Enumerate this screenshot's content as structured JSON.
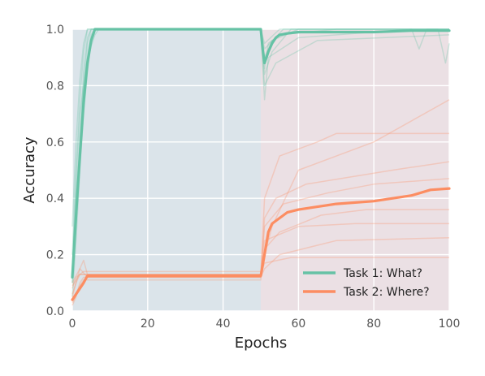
{
  "chart_data": {
    "type": "line",
    "title": "",
    "xlabel": "Epochs",
    "ylabel": "Accuracy",
    "xlim": [
      0,
      100
    ],
    "ylim": [
      0,
      1
    ],
    "xticks": [
      0,
      20,
      40,
      60,
      80,
      100
    ],
    "yticks": [
      0.0,
      0.2,
      0.4,
      0.6,
      0.8,
      1.0
    ],
    "grid": true,
    "legend_position": "bottom-right",
    "regions": [
      {
        "x_start": 0,
        "x_end": 50,
        "color": "#dbe4ea"
      },
      {
        "x_start": 50,
        "x_end": 100,
        "color": "#ebe0e4"
      }
    ],
    "series": [
      {
        "name": "Task 1: What?",
        "color": "#66c2a5",
        "x": [
          0,
          1,
          2,
          3,
          4,
          5,
          6,
          7,
          10,
          20,
          30,
          40,
          50,
          50.5,
          51,
          52,
          53,
          54,
          55,
          57,
          60,
          70,
          80,
          90,
          100
        ],
        "y": [
          0.12,
          0.34,
          0.55,
          0.74,
          0.88,
          0.96,
          1.0,
          1.0,
          1.0,
          1.0,
          1.0,
          1.0,
          1.0,
          0.93,
          0.88,
          0.92,
          0.95,
          0.97,
          0.98,
          0.985,
          0.99,
          0.99,
          0.99,
          0.995,
          0.995
        ],
        "runs": [
          {
            "x": [
              0,
              1,
              2,
              3,
              4,
              5,
              6,
              50,
              51,
              53,
              60,
              100
            ],
            "y": [
              0.1,
              0.3,
              0.6,
              0.85,
              0.97,
              1.0,
              1.0,
              1.0,
              0.9,
              0.96,
              1.0,
              1.0
            ]
          },
          {
            "x": [
              0,
              1,
              2,
              3,
              4,
              5,
              6,
              7,
              50,
              51,
              52,
              55,
              70,
              100
            ],
            "y": [
              0.15,
              0.45,
              0.7,
              0.8,
              0.9,
              0.98,
              1.0,
              1.0,
              1.0,
              0.86,
              0.95,
              0.98,
              1.0,
              1.0
            ]
          },
          {
            "x": [
              0,
              1,
              2,
              3,
              4,
              5,
              50,
              51,
              54,
              65,
              100
            ],
            "y": [
              0.2,
              0.5,
              0.75,
              0.92,
              1.0,
              1.0,
              1.0,
              0.8,
              0.88,
              0.96,
              0.98
            ]
          },
          {
            "x": [
              0,
              1,
              2,
              3,
              4,
              5,
              6,
              50,
              51,
              56,
              100
            ],
            "y": [
              0.05,
              0.25,
              0.5,
              0.7,
              0.85,
              0.95,
              1.0,
              1.0,
              0.93,
              1.0,
              1.0
            ]
          },
          {
            "x": [
              0,
              1,
              2,
              3,
              4,
              5,
              6,
              7,
              50,
              51,
              53,
              58,
              100
            ],
            "y": [
              0.1,
              0.4,
              0.6,
              0.78,
              0.88,
              0.94,
              0.98,
              1.0,
              1.0,
              0.84,
              0.92,
              1.0,
              1.0
            ]
          },
          {
            "x": [
              0,
              1,
              2,
              3,
              4,
              50,
              51,
              52,
              60,
              90,
              92,
              94,
              100
            ],
            "y": [
              0.3,
              0.6,
              0.82,
              0.95,
              1.0,
              1.0,
              0.75,
              0.9,
              0.97,
              1.0,
              0.93,
              1.0,
              1.0
            ]
          },
          {
            "x": [
              0,
              1,
              2,
              3,
              4,
              5,
              50,
              51,
              55,
              97,
              99,
              100
            ],
            "y": [
              0.12,
              0.35,
              0.55,
              0.8,
              0.95,
              1.0,
              1.0,
              0.95,
              1.0,
              1.0,
              0.88,
              0.95
            ]
          }
        ]
      },
      {
        "name": "Task 2: Where?",
        "color": "#fc8d62",
        "x": [
          0,
          1,
          2,
          3,
          4,
          50,
          51,
          52,
          53,
          55,
          57,
          60,
          65,
          70,
          75,
          80,
          85,
          90,
          95,
          100
        ],
        "y": [
          0.04,
          0.06,
          0.08,
          0.1,
          0.125,
          0.125,
          0.2,
          0.28,
          0.31,
          0.33,
          0.35,
          0.36,
          0.37,
          0.38,
          0.385,
          0.39,
          0.4,
          0.41,
          0.43,
          0.435
        ],
        "runs": [
          {
            "x": [
              0,
              1,
              2,
              3,
              4,
              50,
              51,
              55,
              65,
              70,
              100
            ],
            "y": [
              0.05,
              0.1,
              0.15,
              0.18,
              0.13,
              0.13,
              0.4,
              0.55,
              0.6,
              0.63,
              0.63
            ]
          },
          {
            "x": [
              0,
              1,
              2,
              3,
              50,
              51,
              53,
              60,
              80,
              100
            ],
            "y": [
              0.02,
              0.05,
              0.1,
              0.12,
              0.12,
              0.2,
              0.3,
              0.5,
              0.6,
              0.75
            ]
          },
          {
            "x": [
              0,
              2,
              4,
              50,
              51,
              55,
              70,
              100
            ],
            "y": [
              0.1,
              0.15,
              0.12,
              0.12,
              0.15,
              0.2,
              0.25,
              0.26
            ]
          },
          {
            "x": [
              0,
              1,
              3,
              50,
              51,
              60,
              75,
              100
            ],
            "y": [
              0.08,
              0.12,
              0.14,
              0.14,
              0.25,
              0.3,
              0.31,
              0.31
            ]
          },
          {
            "x": [
              0,
              2,
              4,
              50,
              51,
              56,
              68,
              80,
              100
            ],
            "y": [
              0.03,
              0.08,
              0.12,
              0.12,
              0.3,
              0.38,
              0.42,
              0.45,
              0.47
            ]
          },
          {
            "x": [
              0,
              1,
              2,
              50,
              51,
              58,
              100
            ],
            "y": [
              0.06,
              0.1,
              0.13,
              0.13,
              0.17,
              0.19,
              0.19
            ]
          },
          {
            "x": [
              0,
              2,
              3,
              50,
              51,
              54,
              62,
              85,
              100
            ],
            "y": [
              0.04,
              0.09,
              0.11,
              0.11,
              0.33,
              0.4,
              0.45,
              0.5,
              0.53
            ]
          },
          {
            "x": [
              0,
              1,
              2,
              50,
              51,
              55,
              66,
              78,
              100
            ],
            "y": [
              0.09,
              0.11,
              0.13,
              0.13,
              0.22,
              0.28,
              0.34,
              0.36,
              0.36
            ]
          }
        ]
      }
    ]
  }
}
